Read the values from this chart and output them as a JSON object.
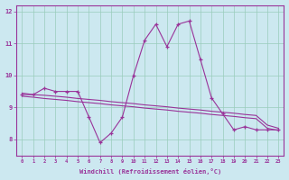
{
  "xlabel": "Windchill (Refroidissement éolien,°C)",
  "background_color": "#cce8f0",
  "grid_color": "#99ccbb",
  "line_color": "#993399",
  "x_values": [
    0,
    1,
    2,
    3,
    4,
    5,
    6,
    7,
    8,
    9,
    10,
    11,
    12,
    13,
    14,
    15,
    16,
    17,
    18,
    19,
    20,
    21,
    22,
    23
  ],
  "main_line": [
    9.4,
    9.4,
    9.6,
    9.5,
    9.5,
    9.5,
    8.7,
    7.9,
    8.2,
    8.7,
    10.0,
    11.1,
    11.6,
    10.9,
    11.6,
    11.7,
    10.5,
    9.3,
    8.8,
    8.3,
    8.4,
    8.3,
    8.3,
    8.3
  ],
  "upper_line": [
    9.45,
    9.4,
    9.38,
    9.35,
    9.32,
    9.28,
    9.25,
    9.22,
    9.18,
    9.15,
    9.12,
    9.08,
    9.05,
    9.02,
    8.98,
    8.95,
    8.92,
    8.88,
    8.85,
    8.82,
    8.78,
    8.75,
    8.45,
    8.35
  ],
  "lower_line": [
    9.35,
    9.32,
    9.28,
    9.25,
    9.22,
    9.18,
    9.15,
    9.12,
    9.08,
    9.05,
    9.02,
    8.98,
    8.95,
    8.92,
    8.88,
    8.85,
    8.82,
    8.78,
    8.75,
    8.72,
    8.68,
    8.65,
    8.35,
    8.28
  ],
  "ylim": [
    7.5,
    12.2
  ],
  "yticks": [
    8,
    9,
    10,
    11,
    12
  ],
  "xlim": [
    -0.5,
    23.5
  ]
}
